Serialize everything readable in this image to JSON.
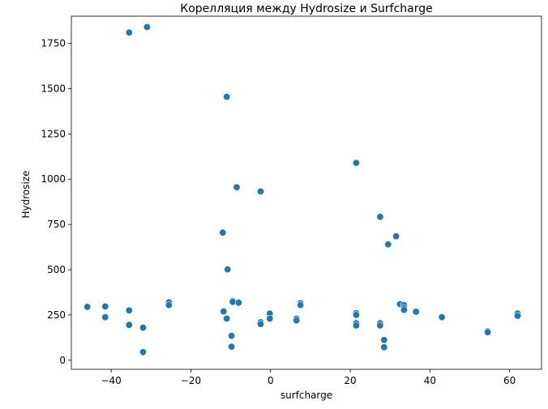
{
  "chart_data": {
    "type": "scatter",
    "title": "Корелляция между Hydrosize и Surfcharge",
    "xlabel": "surfcharge",
    "ylabel": "Hydrosize",
    "xlim": [
      -50,
      68
    ],
    "ylim": [
      -50,
      1900
    ],
    "xticks": [
      -40,
      -20,
      0,
      20,
      40,
      60
    ],
    "yticks": [
      0,
      250,
      500,
      750,
      1000,
      1250,
      1500,
      1750
    ],
    "xtick_labels": [
      "−40",
      "−20",
      "0",
      "20",
      "40",
      "60"
    ],
    "ytick_labels": [
      "0",
      "250",
      "500",
      "750",
      "1000",
      "1250",
      "1500",
      "1750"
    ],
    "grid": false,
    "marker_color": "#1f77b4",
    "points": [
      [
        -35.5,
        1810
      ],
      [
        -31,
        1840
      ],
      [
        -11,
        1455
      ],
      [
        21.5,
        1090
      ],
      [
        -8.5,
        955
      ],
      [
        -2.5,
        932
      ],
      [
        27.5,
        792
      ],
      [
        31.5,
        685
      ],
      [
        29.5,
        640
      ],
      [
        -12,
        705
      ],
      [
        -10.8,
        502
      ],
      [
        -46,
        295
      ],
      [
        -41.5,
        297
      ],
      [
        -41.5,
        238
      ],
      [
        -35.5,
        275
      ],
      [
        -35.5,
        195
      ],
      [
        -32,
        180
      ],
      [
        -32,
        45
      ],
      [
        -25.5,
        320
      ],
      [
        -25.5,
        305
      ],
      [
        -11.8,
        270
      ],
      [
        -11,
        230
      ],
      [
        -9.5,
        328
      ],
      [
        -9.5,
        322
      ],
      [
        -8,
        318
      ],
      [
        -9.8,
        135
      ],
      [
        -9.8,
        75
      ],
      [
        -2.5,
        210
      ],
      [
        -2.5,
        200
      ],
      [
        -0.2,
        258
      ],
      [
        -0.2,
        230
      ],
      [
        6.5,
        230
      ],
      [
        6.5,
        220
      ],
      [
        7.5,
        315
      ],
      [
        7.5,
        305
      ],
      [
        21.5,
        260
      ],
      [
        21.5,
        250
      ],
      [
        21.5,
        205
      ],
      [
        21.5,
        192
      ],
      [
        27.5,
        205
      ],
      [
        27.5,
        192
      ],
      [
        28.5,
        112
      ],
      [
        28.5,
        72
      ],
      [
        32.5,
        310
      ],
      [
        33.5,
        305
      ],
      [
        33.5,
        290
      ],
      [
        33.5,
        278
      ],
      [
        36.5,
        268
      ],
      [
        43,
        238
      ],
      [
        54.5,
        160
      ],
      [
        54.5,
        155
      ],
      [
        62,
        258
      ],
      [
        62,
        245
      ]
    ]
  }
}
